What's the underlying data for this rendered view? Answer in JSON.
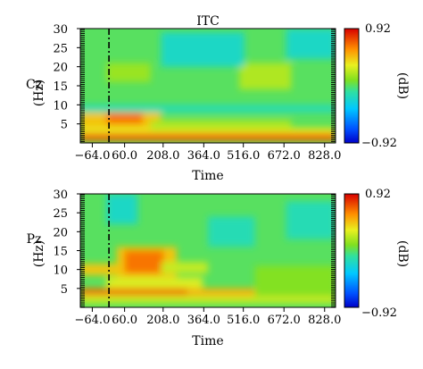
{
  "chart_data": [
    {
      "type": "heatmap",
      "title": "ITC",
      "channel": "Cz",
      "xlabel": "Time",
      "ylabel": "(Hz)",
      "x_ticks": [
        -64.0,
        60.0,
        208.0,
        364.0,
        516.0,
        672.0,
        828.0
      ],
      "x_tick_labels": [
        "−64.0",
        "60.0",
        "208.0",
        "364.0",
        "516.0",
        "672.0",
        "828.0"
      ],
      "y_ticks": [
        5,
        10,
        15,
        20,
        25,
        30
      ],
      "y_tick_labels": [
        "5",
        "10",
        "15",
        "20",
        "25",
        "30"
      ],
      "xlim": [
        -110,
        870
      ],
      "ylim": [
        0,
        30
      ],
      "event_marker_time": 0,
      "colorbar": {
        "label": "(dB)",
        "min": -0.92,
        "max": 0.92,
        "min_label": "−0.92",
        "max_label": "0.92"
      },
      "background_value": 0.0,
      "regions": [
        {
          "t": [
            -110,
            200
          ],
          "f": [
            4,
            9
          ],
          "value": 0.45
        },
        {
          "t": [
            -10,
            130
          ],
          "f": [
            5,
            8
          ],
          "value": 0.65
        },
        {
          "t": [
            -110,
            870
          ],
          "f": [
            0.5,
            2.5
          ],
          "value": 0.7
        },
        {
          "t": [
            -110,
            870
          ],
          "f": [
            2.5,
            4
          ],
          "value": 0.35
        },
        {
          "t": [
            160,
            700
          ],
          "f": [
            3.5,
            6
          ],
          "value": 0.2
        },
        {
          "t": [
            500,
            700
          ],
          "f": [
            14,
            21
          ],
          "value": 0.2
        },
        {
          "t": [
            -10,
            160
          ],
          "f": [
            16,
            21
          ],
          "value": 0.15
        },
        {
          "t": [
            -110,
            870
          ],
          "f": [
            8,
            10
          ],
          "value": -0.15
        },
        {
          "t": [
            200,
            520
          ],
          "f": [
            20,
            29
          ],
          "value": -0.2
        },
        {
          "t": [
            680,
            870
          ],
          "f": [
            22,
            30
          ],
          "value": -0.2
        }
      ]
    },
    {
      "type": "heatmap",
      "channel": "Pz",
      "xlabel": "Time",
      "ylabel": "(Hz)",
      "x_ticks": [
        -64.0,
        60.0,
        208.0,
        364.0,
        516.0,
        672.0,
        828.0
      ],
      "x_tick_labels": [
        "−64.0",
        "60.0",
        "208.0",
        "364.0",
        "516.0",
        "672.0",
        "828.0"
      ],
      "y_ticks": [
        5,
        10,
        15,
        20,
        25,
        30
      ],
      "y_tick_labels": [
        "5",
        "10",
        "15",
        "20",
        "25",
        "30"
      ],
      "xlim": [
        -110,
        870
      ],
      "ylim": [
        0,
        30
      ],
      "event_marker_time": 0,
      "colorbar": {
        "label": "(dB)",
        "min": -0.92,
        "max": 0.92,
        "min_label": "−0.92",
        "max_label": "0.92"
      },
      "background_value": 0.0,
      "regions": [
        {
          "t": [
            -110,
            870
          ],
          "f": [
            3,
            5
          ],
          "value": 0.5
        },
        {
          "t": [
            -110,
            300
          ],
          "f": [
            3.5,
            4.8
          ],
          "value": 0.72
        },
        {
          "t": [
            -110,
            870
          ],
          "f": [
            1,
            3
          ],
          "value": 0.25
        },
        {
          "t": [
            30,
            260
          ],
          "f": [
            8,
            16
          ],
          "value": 0.45
        },
        {
          "t": [
            60,
            210
          ],
          "f": [
            9,
            15
          ],
          "value": 0.65
        },
        {
          "t": [
            -110,
            60
          ],
          "f": [
            8.5,
            11.5
          ],
          "value": 0.45
        },
        {
          "t": [
            -10,
            360
          ],
          "f": [
            5,
            8
          ],
          "value": 0.3
        },
        {
          "t": [
            200,
            380
          ],
          "f": [
            9,
            12
          ],
          "value": 0.25
        },
        {
          "t": [
            560,
            870
          ],
          "f": [
            3,
            11
          ],
          "value": 0.1
        },
        {
          "t": [
            -10,
            110
          ],
          "f": [
            22,
            30
          ],
          "value": -0.2
        },
        {
          "t": [
            380,
            560
          ],
          "f": [
            16,
            24
          ],
          "value": -0.15
        },
        {
          "t": [
            680,
            870
          ],
          "f": [
            18,
            28
          ],
          "value": -0.15
        }
      ]
    }
  ]
}
